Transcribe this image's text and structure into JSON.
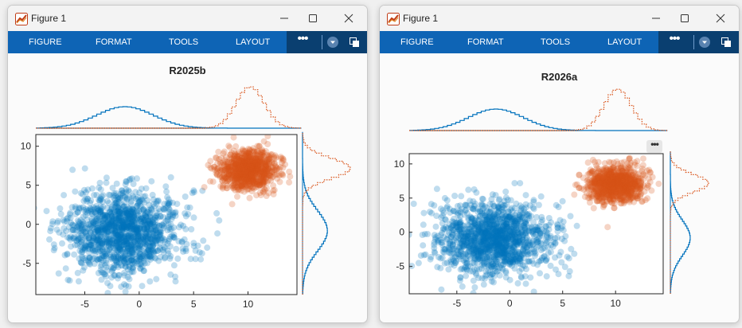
{
  "windows": [
    {
      "title": "Figure 1",
      "toolstrip": {
        "tabs": [
          "FIGURE",
          "FORMAT",
          "TOOLS",
          "LAYOUT"
        ],
        "more": "•••"
      },
      "figure_title": "R2025b",
      "axes_toolbar": ""
    },
    {
      "title": "Figure 1",
      "toolstrip": {
        "tabs": [
          "FIGURE",
          "FORMAT",
          "TOOLS",
          "LAYOUT"
        ],
        "more": "•••"
      },
      "figure_title": "R2026a",
      "axes_toolbar": "•••"
    }
  ],
  "colors": {
    "series1": "#0072bd",
    "series2": "#d95319",
    "toolstrip": "#0e64b5",
    "toolstrip_dark": "#0a3f70"
  },
  "chart_data": [
    {
      "type": "scatter",
      "title": "R2025b",
      "xlim": [
        -9.5,
        14.5
      ],
      "ylim": [
        -9,
        11.5
      ],
      "xticks": [
        -5,
        0,
        5,
        10
      ],
      "yticks": [
        -5,
        0,
        5,
        10
      ],
      "grid": false,
      "series": [
        {
          "color": "#0072bd",
          "center": [
            -1.5,
            -1
          ],
          "spread": [
            2.6,
            2.6
          ],
          "style": "solid marginal histogram"
        },
        {
          "color": "#d95319",
          "center": [
            10,
            7
          ],
          "spread": [
            1.3,
            1.3
          ],
          "style": "dotted marginal histogram"
        }
      ],
      "marginals": "top and right"
    },
    {
      "type": "scatter",
      "title": "R2026a",
      "xlim": [
        -9.5,
        14.5
      ],
      "ylim": [
        -9,
        11.5
      ],
      "xticks": [
        -5,
        0,
        5,
        10
      ],
      "yticks": [
        -5,
        0,
        5,
        10
      ],
      "grid": false,
      "series": [
        {
          "color": "#0072bd",
          "center": [
            -1.5,
            -1
          ],
          "spread": [
            2.6,
            2.6
          ],
          "style": "solid marginal histogram"
        },
        {
          "color": "#d95319",
          "center": [
            10,
            7
          ],
          "spread": [
            1.3,
            1.3
          ],
          "style": "dotted marginal histogram"
        }
      ],
      "marginals": "top and right"
    }
  ]
}
